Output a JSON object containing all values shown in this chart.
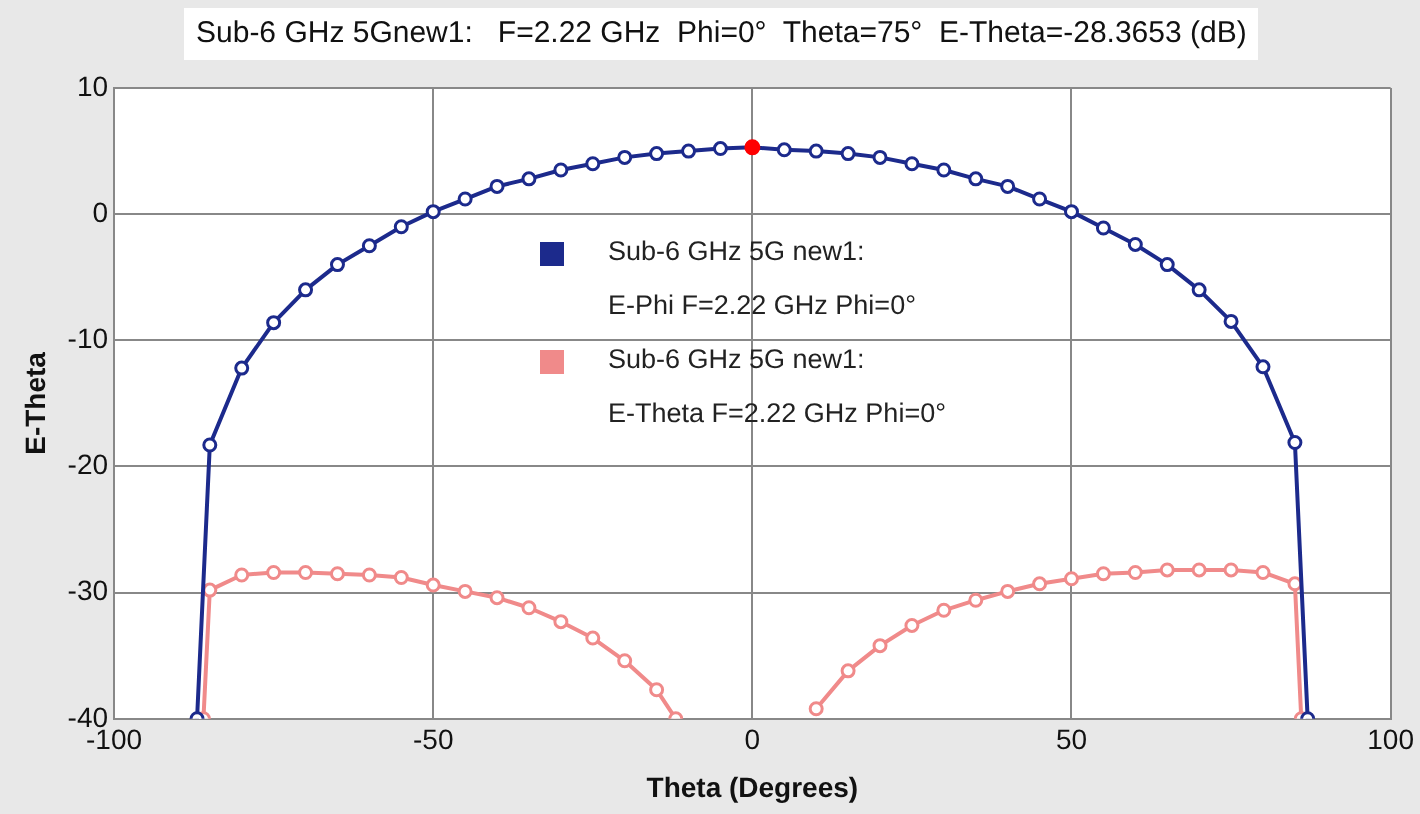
{
  "chart_data": {
    "type": "line",
    "title": "Sub-6 GHz 5Gnew1:   F=2.22 GHz  Phi=0°  Theta=75°  E-Theta=-28.3653 (dB)",
    "xlabel": "Theta (Degrees)",
    "ylabel": "E-Theta",
    "xlim": [
      -100,
      100
    ],
    "xticks": [
      -100,
      -50,
      0,
      50,
      100
    ],
    "ylim": [
      -40,
      10
    ],
    "yticks": [
      -40,
      -30,
      -20,
      -10,
      0,
      10
    ],
    "grid": true,
    "legend": "center",
    "marker": "circle",
    "line_style": "solid",
    "series": [
      {
        "name": "Sub-6 GHz 5G new1:\nE-Phi F=2.22 GHz Phi=0°",
        "color": "#1c2a8c",
        "x": [
          -87,
          -85,
          -80,
          -75,
          -70,
          -65,
          -60,
          -55,
          -50,
          -45,
          -40,
          -35,
          -30,
          -25,
          -20,
          -15,
          -10,
          -5,
          0,
          5,
          10,
          15,
          20,
          25,
          30,
          35,
          40,
          45,
          50,
          55,
          60,
          65,
          70,
          75,
          80,
          85,
          87
        ],
        "values": [
          -40,
          -18.3,
          -12.2,
          -8.6,
          -6.0,
          -4.0,
          -2.5,
          -1.0,
          0.2,
          1.2,
          2.2,
          2.8,
          3.5,
          4.0,
          4.5,
          4.8,
          5.0,
          5.2,
          5.3,
          5.1,
          5.0,
          4.8,
          4.5,
          4.0,
          3.5,
          2.8,
          2.2,
          1.2,
          0.2,
          -1.1,
          -2.4,
          -4.0,
          -6.0,
          -8.5,
          -12.1,
          -18.1,
          -40
        ]
      },
      {
        "name": "Sub-6 GHz 5G new1:\nE-Theta F=2.22 GHz Phi=0°",
        "color": "#f08a8a",
        "x": [
          -86,
          -85,
          -80,
          -75,
          -70,
          -65,
          -60,
          -55,
          -50,
          -45,
          -40,
          -35,
          -30,
          -25,
          -20,
          -15,
          -12,
          null,
          10,
          15,
          20,
          25,
          30,
          35,
          40,
          45,
          50,
          55,
          60,
          65,
          70,
          75,
          80,
          85,
          86
        ],
        "values": [
          -40,
          -29.8,
          -28.6,
          -28.4,
          -28.4,
          -28.5,
          -28.6,
          -28.8,
          -29.4,
          -29.9,
          -30.4,
          -31.2,
          -32.3,
          -33.6,
          -35.4,
          -37.7,
          -40,
          null,
          -39.2,
          -36.2,
          -34.2,
          -32.6,
          -31.4,
          -30.6,
          -29.9,
          -29.3,
          -28.9,
          -28.5,
          -28.4,
          -28.2,
          -28.2,
          -28.2,
          -28.4,
          -29.3,
          -40
        ]
      },
      {
        "type": "scatter",
        "color": "#ff0000",
        "x": [
          0
        ],
        "values": [
          5.3
        ]
      }
    ]
  }
}
